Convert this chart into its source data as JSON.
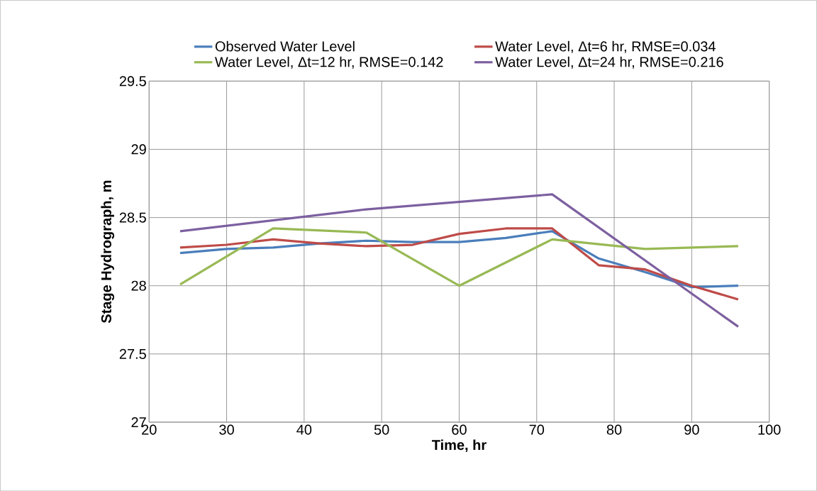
{
  "chart_data": {
    "type": "line",
    "xlabel": "Time, hr",
    "ylabel": "Stage Hydrograph, m",
    "xlim": [
      20,
      100
    ],
    "xticks": [
      20,
      30,
      40,
      50,
      60,
      70,
      80,
      90,
      100
    ],
    "ylim": [
      27,
      29.5
    ],
    "yticks": [
      27,
      27.5,
      28,
      28.5,
      29,
      29.5
    ],
    "grid": true,
    "legend": "top",
    "marker": "none",
    "line_style": "solid",
    "series": [
      {
        "name": "Observed Water Level",
        "color": "#4a7ebb",
        "x": [
          24,
          30,
          36,
          42,
          48,
          54,
          60,
          66,
          72,
          78,
          84,
          90,
          96
        ],
        "values": [
          28.24,
          28.27,
          28.28,
          28.31,
          28.33,
          28.32,
          28.32,
          28.35,
          28.4,
          28.2,
          28.1,
          27.99,
          28.0
        ]
      },
      {
        "name": "Water Level, Δt=6 hr, RMSE=0.034",
        "color": "#be4b48",
        "x": [
          24,
          30,
          36,
          42,
          48,
          54,
          60,
          66,
          72,
          78,
          84,
          90,
          96
        ],
        "values": [
          28.28,
          28.3,
          28.34,
          28.31,
          28.29,
          28.3,
          28.38,
          28.42,
          28.42,
          28.15,
          28.12,
          28.0,
          27.9
        ]
      },
      {
        "name": "Water Level, Δt=12 hr, RMSE=0.142",
        "color": "#98b954",
        "x": [
          24,
          36,
          48,
          60,
          72,
          84,
          96
        ],
        "values": [
          28.01,
          28.42,
          28.39,
          28.0,
          28.34,
          28.27,
          28.29
        ]
      },
      {
        "name": "Water Level, Δt=24 hr, RMSE=0.216",
        "color": "#7d60a0",
        "x": [
          24,
          48,
          72,
          96
        ],
        "values": [
          28.4,
          28.56,
          28.67,
          27.7
        ]
      }
    ]
  }
}
